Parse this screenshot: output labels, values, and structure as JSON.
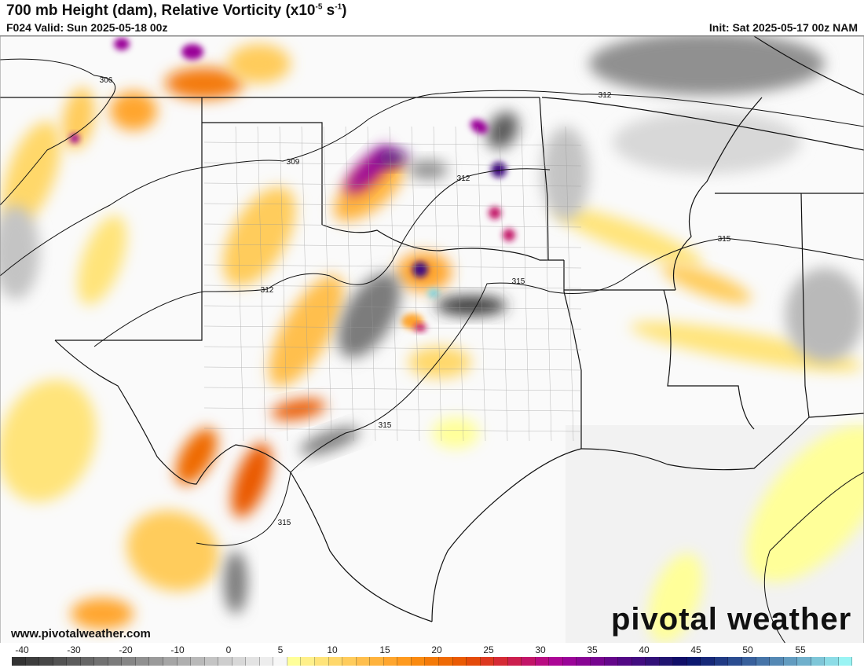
{
  "header": {
    "title": "700 mb Height (dam), Relative Vorticity (x10",
    "title_exp1": "-5",
    "title_mid": " s",
    "title_exp2": "-1",
    "title_end": ")",
    "valid": "F024 Valid: Sun 2025-05-18 00z",
    "init": "Init: Sat 2025-05-17 00z NAM"
  },
  "map": {
    "contour_labels": [
      "306",
      "309",
      "312",
      "312",
      "312",
      "315",
      "315",
      "315",
      "315"
    ],
    "watermark_site": "www.pivotalweather.com",
    "logo": "pivotal weather"
  },
  "colorbar": {
    "ticks": [
      "-40",
      "-30",
      "-20",
      "-10",
      "0",
      "5",
      "10",
      "15",
      "20",
      "25",
      "30",
      "35",
      "40",
      "45",
      "50",
      "55"
    ],
    "colors": [
      "#333333",
      "#3d3d3d",
      "#474747",
      "#525252",
      "#5c5c5c",
      "#666666",
      "#717171",
      "#7b7b7b",
      "#868686",
      "#909090",
      "#9a9a9a",
      "#a5a5a5",
      "#afafaf",
      "#b9b9b9",
      "#c4c4c4",
      "#cecece",
      "#d8d8d8",
      "#e3e3e3",
      "#ededed",
      "#f7f7f7",
      "#ffff99",
      "#fff08a",
      "#ffe47a",
      "#ffd86b",
      "#ffcc5c",
      "#ffbf4d",
      "#ffb33d",
      "#ffa62e",
      "#ff9a1f",
      "#fa8a10",
      "#f47a08",
      "#ef6a05",
      "#ea5a03",
      "#e44a0a",
      "#dd3820",
      "#d52a35",
      "#cc1f4e",
      "#c21468",
      "#b90c82",
      "#ac0696",
      "#9a0498",
      "#880494",
      "#76048f",
      "#64068a",
      "#520885",
      "#420c80",
      "#321078",
      "#201470",
      "#100e68",
      "#0c1870",
      "#162878",
      "#203a84",
      "#2a4c90",
      "#38609c",
      "#4674a8",
      "#5488b4",
      "#629cc0",
      "#70b0cc",
      "#7ec6d8",
      "#8cdce6",
      "#9af4f4"
    ]
  }
}
